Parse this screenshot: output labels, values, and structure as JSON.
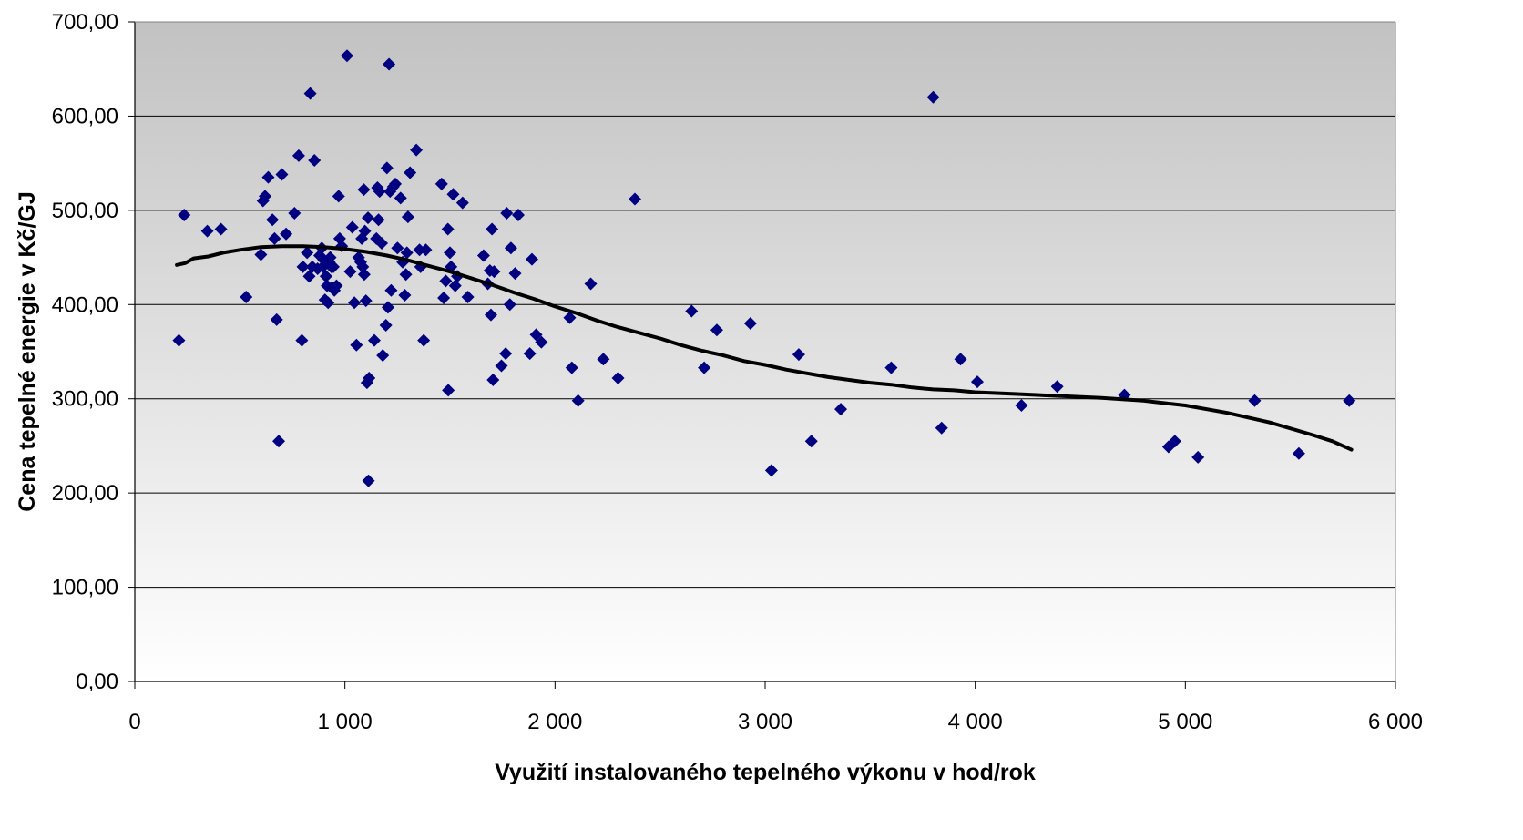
{
  "chart_data": {
    "type": "scatter",
    "title": "",
    "xlabel": "Využití instalovaného tepelného výkonu v hod/rok",
    "ylabel": "Cena tepelné energie v Kč/GJ",
    "xlim": [
      0,
      6000
    ],
    "ylim": [
      0,
      700
    ],
    "x_ticks": [
      0,
      1000,
      2000,
      3000,
      4000,
      5000,
      6000
    ],
    "x_tick_labels": [
      "0",
      "1 000",
      "2 000",
      "3 000",
      "4 000",
      "5 000",
      "6 000"
    ],
    "y_ticks": [
      0,
      100,
      200,
      300,
      400,
      500,
      600,
      700
    ],
    "y_tick_labels": [
      "0,00",
      "100,00",
      "200,00",
      "300,00",
      "400,00",
      "500,00",
      "600,00",
      "700,00"
    ],
    "grid": "horizontal",
    "legend": "none",
    "background": "gradient gray (dark top to light bottom)",
    "marker": "diamond",
    "colors": {
      "points": "#000080",
      "trend": "#000000",
      "grid": "#000000",
      "bg_top": "#c2c2c2",
      "bg_bottom": "#ffffff"
    },
    "points": [
      [
        210,
        362
      ],
      [
        235,
        495
      ],
      [
        345,
        478
      ],
      [
        410,
        480
      ],
      [
        530,
        408
      ],
      [
        600,
        453
      ],
      [
        610,
        510
      ],
      [
        620,
        515
      ],
      [
        635,
        535
      ],
      [
        655,
        490
      ],
      [
        665,
        470
      ],
      [
        675,
        384
      ],
      [
        685,
        255
      ],
      [
        700,
        538
      ],
      [
        720,
        475
      ],
      [
        760,
        497
      ],
      [
        780,
        558
      ],
      [
        795,
        362
      ],
      [
        800,
        440
      ],
      [
        820,
        455
      ],
      [
        830,
        430
      ],
      [
        835,
        624
      ],
      [
        845,
        440
      ],
      [
        855,
        553
      ],
      [
        870,
        438
      ],
      [
        880,
        452
      ],
      [
        890,
        460
      ],
      [
        895,
        440
      ],
      [
        900,
        447
      ],
      [
        905,
        405
      ],
      [
        910,
        430
      ],
      [
        915,
        420
      ],
      [
        920,
        402
      ],
      [
        925,
        445
      ],
      [
        930,
        450
      ],
      [
        935,
        440
      ],
      [
        940,
        418
      ],
      [
        945,
        440
      ],
      [
        950,
        415
      ],
      [
        960,
        420
      ],
      [
        970,
        515
      ],
      [
        975,
        470
      ],
      [
        985,
        462
      ],
      [
        1010,
        664
      ],
      [
        1025,
        435
      ],
      [
        1035,
        482
      ],
      [
        1045,
        402
      ],
      [
        1055,
        357
      ],
      [
        1065,
        450
      ],
      [
        1075,
        445
      ],
      [
        1080,
        470
      ],
      [
        1085,
        440
      ],
      [
        1090,
        522
      ],
      [
        1092,
        432
      ],
      [
        1095,
        478
      ],
      [
        1100,
        404
      ],
      [
        1105,
        317
      ],
      [
        1110,
        492
      ],
      [
        1112,
        213
      ],
      [
        1115,
        322
      ],
      [
        1140,
        362
      ],
      [
        1150,
        470
      ],
      [
        1155,
        524
      ],
      [
        1160,
        490
      ],
      [
        1165,
        520
      ],
      [
        1175,
        465
      ],
      [
        1180,
        346
      ],
      [
        1195,
        378
      ],
      [
        1200,
        545
      ],
      [
        1205,
        397
      ],
      [
        1210,
        655
      ],
      [
        1215,
        520
      ],
      [
        1220,
        415
      ],
      [
        1230,
        525
      ],
      [
        1240,
        528
      ],
      [
        1250,
        460
      ],
      [
        1265,
        513
      ],
      [
        1275,
        445
      ],
      [
        1285,
        410
      ],
      [
        1290,
        432
      ],
      [
        1295,
        455
      ],
      [
        1300,
        493
      ],
      [
        1310,
        540
      ],
      [
        1340,
        564
      ],
      [
        1355,
        458
      ],
      [
        1360,
        440
      ],
      [
        1375,
        362
      ],
      [
        1385,
        458
      ],
      [
        1460,
        528
      ],
      [
        1470,
        407
      ],
      [
        1480,
        425
      ],
      [
        1490,
        480
      ],
      [
        1492,
        309
      ],
      [
        1500,
        455
      ],
      [
        1505,
        440
      ],
      [
        1515,
        517
      ],
      [
        1525,
        420
      ],
      [
        1535,
        430
      ],
      [
        1560,
        508
      ],
      [
        1585,
        408
      ],
      [
        1660,
        452
      ],
      [
        1680,
        422
      ],
      [
        1690,
        436
      ],
      [
        1695,
        389
      ],
      [
        1700,
        480
      ],
      [
        1705,
        320
      ],
      [
        1710,
        435
      ],
      [
        1745,
        335
      ],
      [
        1765,
        348
      ],
      [
        1770,
        497
      ],
      [
        1785,
        400
      ],
      [
        1790,
        460
      ],
      [
        1810,
        433
      ],
      [
        1825,
        495
      ],
      [
        1880,
        348
      ],
      [
        1890,
        448
      ],
      [
        1910,
        368
      ],
      [
        1935,
        360
      ],
      [
        2070,
        386
      ],
      [
        2080,
        333
      ],
      [
        2110,
        298
      ],
      [
        2170,
        422
      ],
      [
        2230,
        342
      ],
      [
        2300,
        322
      ],
      [
        2380,
        512
      ],
      [
        2650,
        393
      ],
      [
        2710,
        333
      ],
      [
        2770,
        373
      ],
      [
        2930,
        380
      ],
      [
        3030,
        224
      ],
      [
        3160,
        347
      ],
      [
        3220,
        255
      ],
      [
        3360,
        289
      ],
      [
        3600,
        333
      ],
      [
        3800,
        620
      ],
      [
        3840,
        269
      ],
      [
        3930,
        342
      ],
      [
        4010,
        318
      ],
      [
        4220,
        293
      ],
      [
        4390,
        313
      ],
      [
        4710,
        304
      ],
      [
        4920,
        249
      ],
      [
        4950,
        255
      ],
      [
        5060,
        238
      ],
      [
        5330,
        298
      ],
      [
        5540,
        242
      ],
      [
        5780,
        298
      ]
    ],
    "trendline": [
      [
        200,
        442
      ],
      [
        240,
        444
      ],
      [
        280,
        449
      ],
      [
        350,
        451
      ],
      [
        420,
        455
      ],
      [
        500,
        458
      ],
      [
        600,
        461
      ],
      [
        700,
        462
      ],
      [
        800,
        462
      ],
      [
        900,
        461
      ],
      [
        1000,
        459
      ],
      [
        1100,
        456
      ],
      [
        1200,
        452
      ],
      [
        1300,
        447
      ],
      [
        1400,
        441
      ],
      [
        1500,
        435
      ],
      [
        1600,
        428
      ],
      [
        1700,
        421
      ],
      [
        1800,
        413
      ],
      [
        1900,
        406
      ],
      [
        2000,
        398
      ],
      [
        2100,
        391
      ],
      [
        2200,
        383
      ],
      [
        2300,
        376
      ],
      [
        2400,
        370
      ],
      [
        2500,
        364
      ],
      [
        2600,
        357
      ],
      [
        2700,
        351
      ],
      [
        2800,
        346
      ],
      [
        2900,
        340
      ],
      [
        3000,
        336
      ],
      [
        3100,
        331
      ],
      [
        3200,
        327
      ],
      [
        3300,
        323
      ],
      [
        3400,
        320
      ],
      [
        3500,
        317
      ],
      [
        3600,
        315
      ],
      [
        3700,
        312
      ],
      [
        3800,
        310
      ],
      [
        3900,
        309
      ],
      [
        4000,
        307
      ],
      [
        4200,
        305
      ],
      [
        4400,
        303
      ],
      [
        4600,
        301
      ],
      [
        4800,
        298
      ],
      [
        5000,
        293
      ],
      [
        5200,
        285
      ],
      [
        5400,
        275
      ],
      [
        5600,
        262
      ],
      [
        5700,
        255
      ],
      [
        5790,
        246
      ]
    ]
  }
}
